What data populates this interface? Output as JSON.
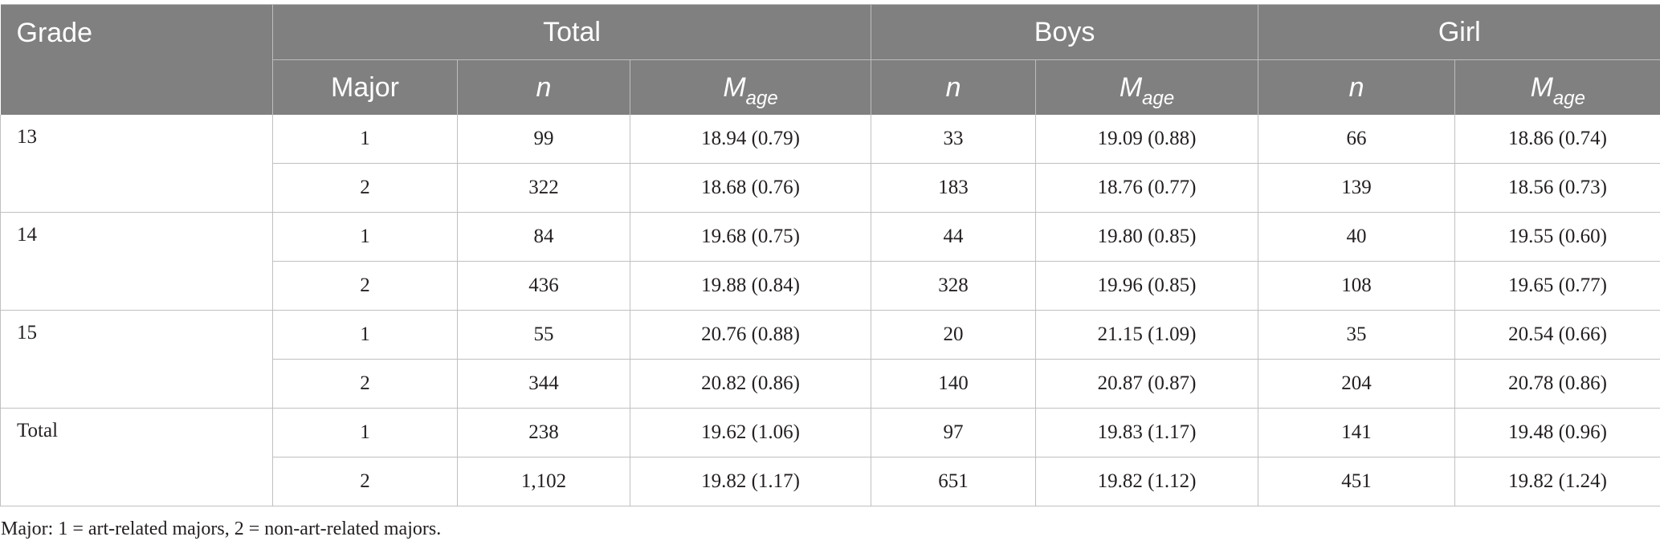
{
  "header": {
    "grade": "Grade",
    "total": "Total",
    "boys": "Boys",
    "girl": "Girl",
    "major": "Major",
    "n": "n",
    "m": "M",
    "m_sub": "age"
  },
  "rows": [
    {
      "grade": "13",
      "major": "1",
      "tn": "99",
      "tm": "18.94 (0.79)",
      "bn": "33",
      "bm": "19.09 (0.88)",
      "gn": "66",
      "gm": "18.86 (0.74)"
    },
    {
      "grade": "",
      "major": "2",
      "tn": "322",
      "tm": "18.68 (0.76)",
      "bn": "183",
      "bm": "18.76 (0.77)",
      "gn": "139",
      "gm": "18.56 (0.73)"
    },
    {
      "grade": "14",
      "major": "1",
      "tn": "84",
      "tm": "19.68 (0.75)",
      "bn": "44",
      "bm": "19.80 (0.85)",
      "gn": "40",
      "gm": "19.55 (0.60)"
    },
    {
      "grade": "",
      "major": "2",
      "tn": "436",
      "tm": "19.88 (0.84)",
      "bn": "328",
      "bm": "19.96 (0.85)",
      "gn": "108",
      "gm": "19.65 (0.77)"
    },
    {
      "grade": "15",
      "major": "1",
      "tn": "55",
      "tm": "20.76 (0.88)",
      "bn": "20",
      "bm": "21.15 (1.09)",
      "gn": "35",
      "gm": "20.54 (0.66)"
    },
    {
      "grade": "",
      "major": "2",
      "tn": "344",
      "tm": "20.82 (0.86)",
      "bn": "140",
      "bm": "20.87 (0.87)",
      "gn": "204",
      "gm": "20.78 (0.86)"
    },
    {
      "grade": "Total",
      "major": "1",
      "tn": "238",
      "tm": "19.62 (1.06)",
      "bn": "97",
      "bm": "19.83 (1.17)",
      "gn": "141",
      "gm": "19.48 (0.96)"
    },
    {
      "grade": "",
      "major": "2",
      "tn": "1,102",
      "tm": "19.82 (1.17)",
      "bn": "651",
      "bm": "19.82 (1.12)",
      "gn": "451",
      "gm": "19.82 (1.24)"
    }
  ],
  "footnote": "Major: 1 = art-related majors, 2 = non-art-related majors."
}
